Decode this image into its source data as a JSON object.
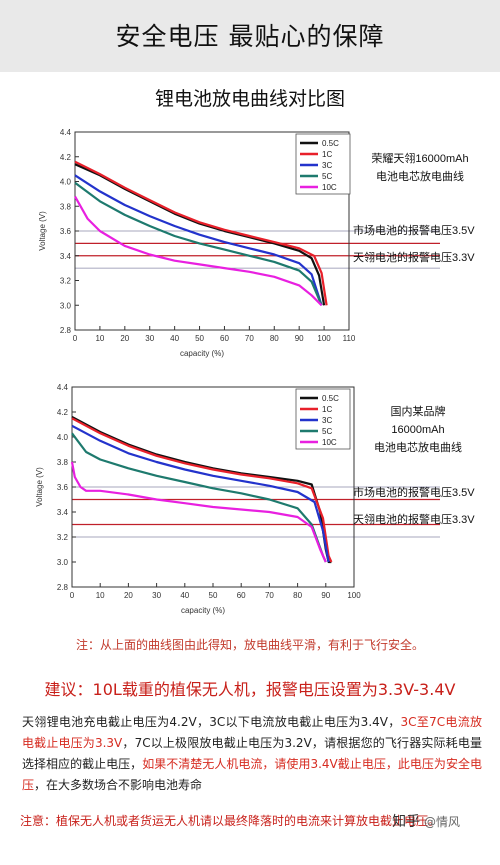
{
  "header": {
    "title": "安全电压 最贴心的保障"
  },
  "main_title": "锂电池放电曲线对比图",
  "charts": {
    "colors": {
      "c05": "#111111",
      "c1": "#e8202a",
      "c3": "#2333cc",
      "c5": "#1e7a6e",
      "c10": "#e820e0"
    },
    "alarm_color": "#c0202a",
    "side_line_color": "#888888"
  },
  "chart_data": [
    {
      "type": "line",
      "xlabel": "capacity (%)",
      "ylabel": "Voltage (V)",
      "xlim": [
        0,
        110
      ],
      "ylim": [
        2.8,
        4.4
      ],
      "xticks": [
        "0",
        "10",
        "20",
        "30",
        "40",
        "50",
        "60",
        "70",
        "80",
        "90",
        "100",
        "110"
      ],
      "yticks": [
        "2.8",
        "3.0",
        "3.2",
        "3.4",
        "3.6",
        "3.8",
        "4.0",
        "4.2",
        "4.4"
      ],
      "legend": [
        "0.5C",
        "1C",
        "3C",
        "5C",
        "10C"
      ],
      "legend_position": "top-right",
      "side_label_lines": [
        "荣耀天翎16000mAh",
        "电池电芯放电曲线"
      ],
      "alarm_labels": [
        "市场电池的报警电压3.5V",
        "天翎电池的报警电压3.3V"
      ],
      "alarm_values": [
        3.6,
        3.5,
        3.4,
        3.3
      ],
      "series": [
        {
          "name": "0.5C",
          "color_key": "c05",
          "x": [
            0,
            10,
            20,
            30,
            40,
            50,
            60,
            70,
            80,
            90,
            95,
            98,
            100
          ],
          "y": [
            4.14,
            4.05,
            3.94,
            3.84,
            3.74,
            3.66,
            3.6,
            3.55,
            3.5,
            3.44,
            3.38,
            3.24,
            3.0
          ]
        },
        {
          "name": "1C",
          "color_key": "c1",
          "x": [
            0,
            10,
            20,
            30,
            40,
            50,
            60,
            70,
            80,
            90,
            96,
            99,
            101
          ],
          "y": [
            4.16,
            4.06,
            3.95,
            3.85,
            3.75,
            3.67,
            3.61,
            3.56,
            3.51,
            3.46,
            3.4,
            3.26,
            3.0
          ]
        },
        {
          "name": "3C",
          "color_key": "c3",
          "x": [
            0,
            10,
            20,
            30,
            40,
            50,
            60,
            70,
            80,
            90,
            95,
            99
          ],
          "y": [
            4.05,
            3.92,
            3.81,
            3.72,
            3.64,
            3.57,
            3.51,
            3.46,
            3.41,
            3.34,
            3.25,
            3.0
          ]
        },
        {
          "name": "5C",
          "color_key": "c5",
          "x": [
            0,
            10,
            20,
            30,
            40,
            50,
            60,
            70,
            80,
            90,
            95,
            99
          ],
          "y": [
            3.99,
            3.84,
            3.73,
            3.64,
            3.56,
            3.5,
            3.45,
            3.4,
            3.35,
            3.28,
            3.19,
            3.0
          ]
        },
        {
          "name": "10C",
          "color_key": "c10",
          "x": [
            0,
            5,
            10,
            20,
            30,
            40,
            50,
            60,
            70,
            80,
            90,
            95,
            99
          ],
          "y": [
            3.88,
            3.7,
            3.6,
            3.48,
            3.41,
            3.36,
            3.33,
            3.3,
            3.27,
            3.23,
            3.16,
            3.08,
            3.0
          ]
        }
      ]
    },
    {
      "type": "line",
      "xlabel": "capacity (%)",
      "ylabel": "Voltage (V)",
      "xlim": [
        0,
        100
      ],
      "ylim": [
        2.8,
        4.4
      ],
      "xticks": [
        "0",
        "10",
        "20",
        "30",
        "40",
        "50",
        "60",
        "70",
        "80",
        "90",
        "100"
      ],
      "yticks": [
        "2.8",
        "3.0",
        "3.2",
        "3.4",
        "3.6",
        "3.8",
        "4.0",
        "4.2",
        "4.4"
      ],
      "legend": [
        "0.5C",
        "1C",
        "3C",
        "5C",
        "10C"
      ],
      "legend_position": "top-right",
      "side_label_lines": [
        "国内某品牌",
        "16000mAh",
        "电池电芯放电曲线"
      ],
      "alarm_labels": [
        "市场电池的报警电压3.5V",
        "天翎电池的报警电压3.3V"
      ],
      "alarm_values": [
        3.6,
        3.5,
        3.3,
        3.2
      ],
      "series": [
        {
          "name": "0.5C",
          "color_key": "c05",
          "x": [
            0,
            10,
            20,
            30,
            40,
            50,
            60,
            70,
            80,
            85,
            88,
            90,
            91,
            92
          ],
          "y": [
            4.16,
            4.04,
            3.94,
            3.86,
            3.8,
            3.75,
            3.71,
            3.68,
            3.65,
            3.62,
            3.4,
            3.1,
            3.0,
            3.0
          ]
        },
        {
          "name": "1C",
          "color_key": "c1",
          "x": [
            0,
            10,
            20,
            30,
            40,
            50,
            60,
            70,
            80,
            85,
            89,
            91,
            92
          ],
          "y": [
            4.15,
            4.03,
            3.93,
            3.85,
            3.79,
            3.74,
            3.7,
            3.67,
            3.63,
            3.59,
            3.35,
            3.05,
            3.0
          ]
        },
        {
          "name": "3C",
          "color_key": "c3",
          "x": [
            0,
            10,
            20,
            30,
            40,
            50,
            60,
            70,
            80,
            86,
            89,
            91
          ],
          "y": [
            4.09,
            3.97,
            3.87,
            3.8,
            3.74,
            3.69,
            3.65,
            3.61,
            3.56,
            3.48,
            3.25,
            3.0
          ]
        },
        {
          "name": "5C",
          "color_key": "c5",
          "x": [
            0,
            5,
            10,
            20,
            30,
            40,
            50,
            60,
            70,
            80,
            85,
            89,
            90
          ],
          "y": [
            4.03,
            3.88,
            3.82,
            3.75,
            3.69,
            3.64,
            3.59,
            3.55,
            3.5,
            3.43,
            3.3,
            3.05,
            3.0
          ]
        },
        {
          "name": "10C",
          "color_key": "c10",
          "x": [
            0,
            1,
            3,
            5,
            10,
            20,
            30,
            40,
            50,
            60,
            70,
            80,
            85,
            88,
            90
          ],
          "y": [
            3.8,
            3.68,
            3.6,
            3.57,
            3.57,
            3.54,
            3.5,
            3.47,
            3.44,
            3.42,
            3.4,
            3.36,
            3.28,
            3.1,
            3.0
          ]
        }
      ]
    }
  ],
  "notes": {
    "note1": "注：从上面的曲线图由此得知，放电曲线平滑，有利于飞行安全。",
    "suggestion": "建议：10L载重的植保无人机，报警电压设置为3.3V-3.4V",
    "para_p1": "天翎锂电池充电截止电压为4.2V，3C以下电流放电截止电压为3.4V，",
    "para_r1": "3C至7C电流放电截止电压为3.3V",
    "para_p2": "，7C以上极限放电截止电压为3.2V，请根据您的飞行器实际耗电量选择相应的截止电压，",
    "para_r2": "如果不清楚无人机电流，请使用3.4V截止电压，此电压为安全电压",
    "para_p3": "，在大多数场合不影响电池寿命",
    "note2": "注意：植保无人机或者货运无人机请以最终降落时的电流来计算放电截止电压。"
  },
  "watermark": {
    "site": "知乎",
    "author": "@情风"
  }
}
